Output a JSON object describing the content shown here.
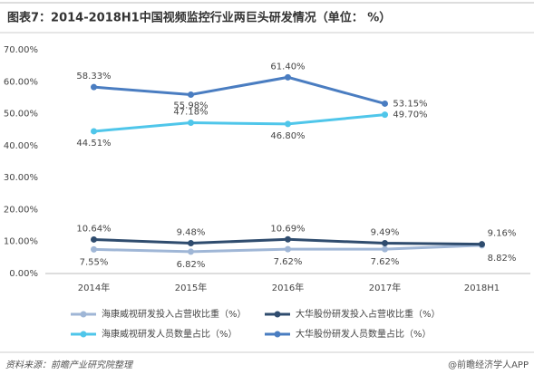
{
  "chart_data": {
    "type": "line",
    "title": "图表7：2014-2018H1中国视频监控行业两巨头研发情况（单位： %）",
    "categories": [
      "2014年",
      "2015年",
      "2016年",
      "2017年",
      "2018H1"
    ],
    "series": [
      {
        "name": "海康威视研发投入占营收比重（%）",
        "color": "#9fb6d6",
        "values": [
          7.55,
          6.82,
          7.62,
          7.62,
          8.82
        ],
        "value_labels": [
          "7.55%",
          "6.82%",
          "7.62%",
          "7.62%",
          "8.82%"
        ]
      },
      {
        "name": "大华股份研发投入占营收比重（%）",
        "color": "#2f4c6e",
        "values": [
          10.64,
          9.48,
          10.69,
          9.49,
          9.16
        ],
        "value_labels": [
          "10.64%",
          "9.48%",
          "10.69%",
          "9.49%",
          "9.16%"
        ]
      },
      {
        "name": "海康威视研发人员数量占比（%）",
        "color": "#4fc6ea",
        "values": [
          44.51,
          47.18,
          46.8,
          49.7,
          null
        ],
        "value_labels": [
          "44.51%",
          "47.18%",
          "46.80%",
          "49.70%",
          null
        ]
      },
      {
        "name": "大华股份研发人员数量占比（%）",
        "color": "#4a7dc1",
        "values": [
          58.33,
          55.98,
          61.4,
          53.15,
          null
        ],
        "value_labels": [
          "58.33%",
          "55.98%",
          "61.40%",
          "53.15%",
          null
        ]
      }
    ],
    "ylim": [
      0,
      70
    ],
    "yticks": [
      {
        "value": 0,
        "label": "0.00%"
      },
      {
        "value": 10,
        "label": "10.00%"
      },
      {
        "value": 20,
        "label": "20.00%"
      },
      {
        "value": 30,
        "label": "30.00%"
      },
      {
        "value": 40,
        "label": "40.00%"
      },
      {
        "value": 50,
        "label": "50.00%"
      },
      {
        "value": 60,
        "label": "60.00%"
      },
      {
        "value": 70,
        "label": "70.00%"
      }
    ],
    "grid": false,
    "source": "资料来源：前瞻产业研究院整理",
    "credit": "@前瞻经济学人APP"
  }
}
